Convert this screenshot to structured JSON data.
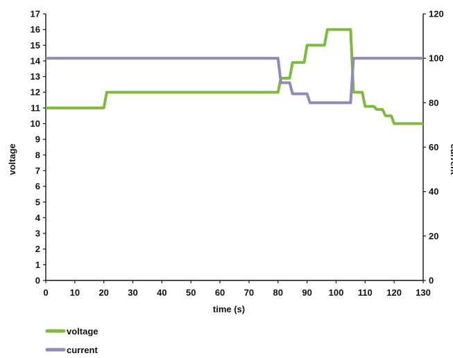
{
  "chart_data": {
    "type": "line",
    "title": "",
    "xlabel": "time (s)",
    "ylabel_left": "voltage",
    "ylabel_right": "current",
    "xlim": [
      0,
      130
    ],
    "ylim_left": [
      0,
      17
    ],
    "ylim_right": [
      0,
      120
    ],
    "x_ticks": [
      0,
      10,
      20,
      30,
      40,
      50,
      60,
      70,
      80,
      90,
      100,
      110,
      120,
      130
    ],
    "y_left_ticks": [
      0,
      1,
      2,
      3,
      4,
      5,
      6,
      7,
      8,
      9,
      10,
      11,
      12,
      13,
      14,
      15,
      16,
      17
    ],
    "y_right_ticks": [
      0,
      20,
      40,
      60,
      80,
      100,
      120
    ],
    "grid": false,
    "legend_position": "bottom-left",
    "series": [
      {
        "name": "voltage",
        "axis": "left",
        "color": "#7dbb3c",
        "x": [
          0,
          20,
          21,
          80,
          81,
          84,
          85,
          89,
          90,
          93,
          94,
          96,
          97,
          105,
          106,
          109,
          110,
          113,
          114,
          116,
          117,
          119,
          120,
          130
        ],
        "y": [
          11,
          11,
          12,
          12,
          12.9,
          12.9,
          13.9,
          13.9,
          15,
          15,
          15,
          15,
          16,
          16,
          12,
          12,
          11.1,
          11.1,
          10.9,
          10.9,
          10.5,
          10.5,
          10,
          10
        ]
      },
      {
        "name": "current",
        "axis": "right",
        "color": "#9289bd",
        "x": [
          0,
          80,
          81,
          84,
          85,
          88,
          89,
          90,
          91,
          104,
          105,
          106,
          130
        ],
        "y": [
          100,
          100,
          89,
          89,
          84,
          84,
          84,
          84,
          80,
          80,
          80,
          100,
          100
        ]
      }
    ]
  }
}
